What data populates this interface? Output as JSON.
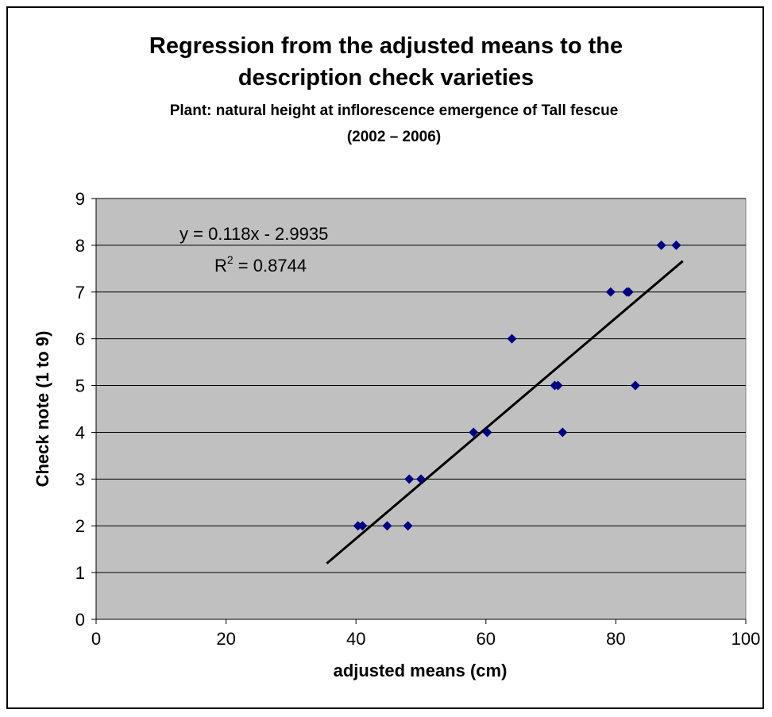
{
  "chart_data": {
    "type": "scatter",
    "title": "Regression from the adjusted means to the description check varieties",
    "title_line1": "Regression from the adjusted means to the",
    "title_line2": "description check varieties",
    "subtitle_line1": "Plant: natural height at inflorescence emergence of Tall fescue",
    "subtitle_line2": "(2002 – 2006)",
    "xlabel": "adjusted means (cm)",
    "ylabel": "Check note (1 to 9)",
    "xlim": [
      0,
      100
    ],
    "ylim": [
      0,
      9
    ],
    "x_ticks": [
      "0",
      "20",
      "40",
      "60",
      "80",
      "100"
    ],
    "y_ticks": [
      "0",
      "1",
      "2",
      "3",
      "4",
      "5",
      "6",
      "7",
      "8",
      "9"
    ],
    "grid": "horizontal",
    "plot_background": "#c0c0c0",
    "marker_color": "#000080",
    "series": [
      {
        "x": [
          40.3,
          41.0,
          44.8,
          48.0,
          48.2,
          50.0,
          58.1,
          60.2,
          64.0,
          70.6,
          71.1,
          71.8,
          79.2,
          81.7,
          82.0,
          83.0,
          87.0,
          89.3
        ],
        "y": [
          2,
          2,
          2,
          2,
          3,
          3,
          4,
          4,
          6,
          5,
          5,
          4,
          7,
          7,
          7,
          5,
          8,
          8
        ]
      }
    ],
    "trendline": {
      "slope": 0.118,
      "intercept": -2.9935,
      "x_range": [
        35.5,
        90.3
      ],
      "equation": "y = 0.118x - 2.9935",
      "r2_prefix": "R",
      "r2_exp": "2",
      "r2_suffix": " = 0.8744"
    }
  }
}
